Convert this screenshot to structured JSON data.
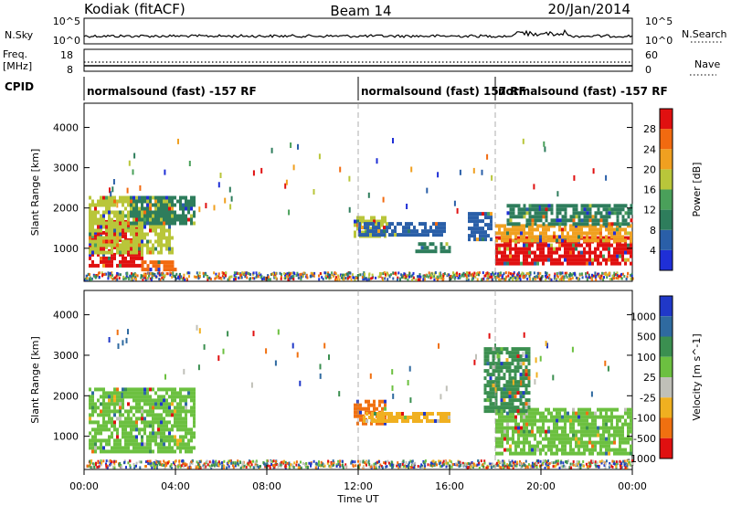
{
  "header": {
    "station": "Kodiak (fitACF)",
    "beam": "Beam 14",
    "date": "20/Jan/2014"
  },
  "strips": {
    "nsky": {
      "label": "N.Sky",
      "ticks": [
        "10^5",
        "10^0"
      ],
      "right_ticks": [
        "10^5",
        "10^0"
      ],
      "right_label": "N.Search"
    },
    "freq": {
      "label_line1": "Freq.",
      "label_line2": "[MHz]",
      "ticks": [
        "18",
        "8"
      ],
      "right_ticks": [
        "60",
        "0"
      ],
      "right_label": "Nave"
    },
    "cpid": {
      "label": "CPID",
      "modes": [
        {
          "text": "normalsound (fast) -157 RF",
          "start_hour": 0
        },
        {
          "text": "normalsound (fast) 157 RF",
          "start_hour": 12
        },
        {
          "text": "normalsound (fast) -157 RF",
          "start_hour": 18
        }
      ]
    }
  },
  "chart_data": [
    {
      "type": "heatmap",
      "title": "",
      "xlabel": "Time UT",
      "ylabel": "Slant Range [km]",
      "x_ticks": [
        "00:00",
        "04:00",
        "08:00",
        "12:00",
        "16:00",
        "20:00",
        "00:00"
      ],
      "xlim": [
        0,
        24
      ],
      "ylim": [
        180,
        4600
      ],
      "y_ticks": [
        1000,
        2000,
        3000,
        4000
      ],
      "colorbar": {
        "label": "Power [dB]",
        "range": [
          0,
          32
        ],
        "ticks": [
          4,
          8,
          12,
          16,
          20,
          24,
          28
        ],
        "colors": [
          "#1f2fd6",
          "#2a5fa8",
          "#2e7d5c",
          "#4aa05a",
          "#b9c63a",
          "#f0a020",
          "#f26a10",
          "#e01010"
        ]
      },
      "regions": [
        {
          "t0": 0.2,
          "t1": 2.5,
          "r0": 600,
          "r1": 1700,
          "level": 28
        },
        {
          "t0": 0.2,
          "t1": 3.9,
          "r0": 900,
          "r1": 2300,
          "level": 18
        },
        {
          "t0": 2.0,
          "t1": 4.8,
          "r0": 1600,
          "r1": 2300,
          "level": 10
        },
        {
          "t0": 2.5,
          "t1": 4.0,
          "r0": 450,
          "r1": 700,
          "level": 24
        },
        {
          "t0": 11.8,
          "t1": 13.2,
          "r0": 1300,
          "r1": 1800,
          "level": 18
        },
        {
          "t0": 12.0,
          "t1": 15.8,
          "r0": 1300,
          "r1": 1650,
          "level": 6
        },
        {
          "t0": 14.5,
          "t1": 16.0,
          "r0": 950,
          "r1": 1150,
          "level": 8
        },
        {
          "t0": 16.8,
          "t1": 17.8,
          "r0": 1200,
          "r1": 1900,
          "level": 6
        },
        {
          "t0": 18.0,
          "t1": 24.0,
          "r0": 600,
          "r1": 1300,
          "level": 28
        },
        {
          "t0": 18.0,
          "t1": 24.0,
          "r0": 1200,
          "r1": 1600,
          "level": 20
        },
        {
          "t0": 18.5,
          "t1": 24.0,
          "r0": 1600,
          "r1": 2100,
          "level": 10
        }
      ]
    },
    {
      "type": "heatmap",
      "title": "",
      "xlabel": "Time UT",
      "ylabel": "Slant Range [km]",
      "x_ticks": [
        "00:00",
        "04:00",
        "08:00",
        "12:00",
        "16:00",
        "20:00",
        "00:00"
      ],
      "xlim": [
        0,
        24
      ],
      "ylim": [
        180,
        4600
      ],
      "y_ticks": [
        1000,
        2000,
        3000,
        4000
      ],
      "colorbar": {
        "label": "Velocity [m s^-1]",
        "ticks": [
          "1000",
          "500",
          "100",
          "25",
          "-25",
          "-100",
          "-500",
          "-1000"
        ],
        "colors": [
          "#2038c8",
          "#2f6aa0",
          "#3b8f50",
          "#6cc040",
          "#c0c0b8",
          "#f0b020",
          "#f07010",
          "#e01010"
        ]
      },
      "regions": [
        {
          "t0": 0.2,
          "t1": 4.8,
          "r0": 600,
          "r1": 2200,
          "level": "25"
        },
        {
          "t0": 11.8,
          "t1": 13.2,
          "r0": 1300,
          "r1": 1900,
          "level": "-500"
        },
        {
          "t0": 12.2,
          "t1": 16.0,
          "r0": 1350,
          "r1": 1600,
          "level": "-100"
        },
        {
          "t0": 18.0,
          "t1": 24.0,
          "r0": 600,
          "r1": 1700,
          "level": "25"
        },
        {
          "t0": 17.5,
          "t1": 19.5,
          "r0": 1600,
          "r1": 3200,
          "level": "100"
        }
      ]
    }
  ]
}
